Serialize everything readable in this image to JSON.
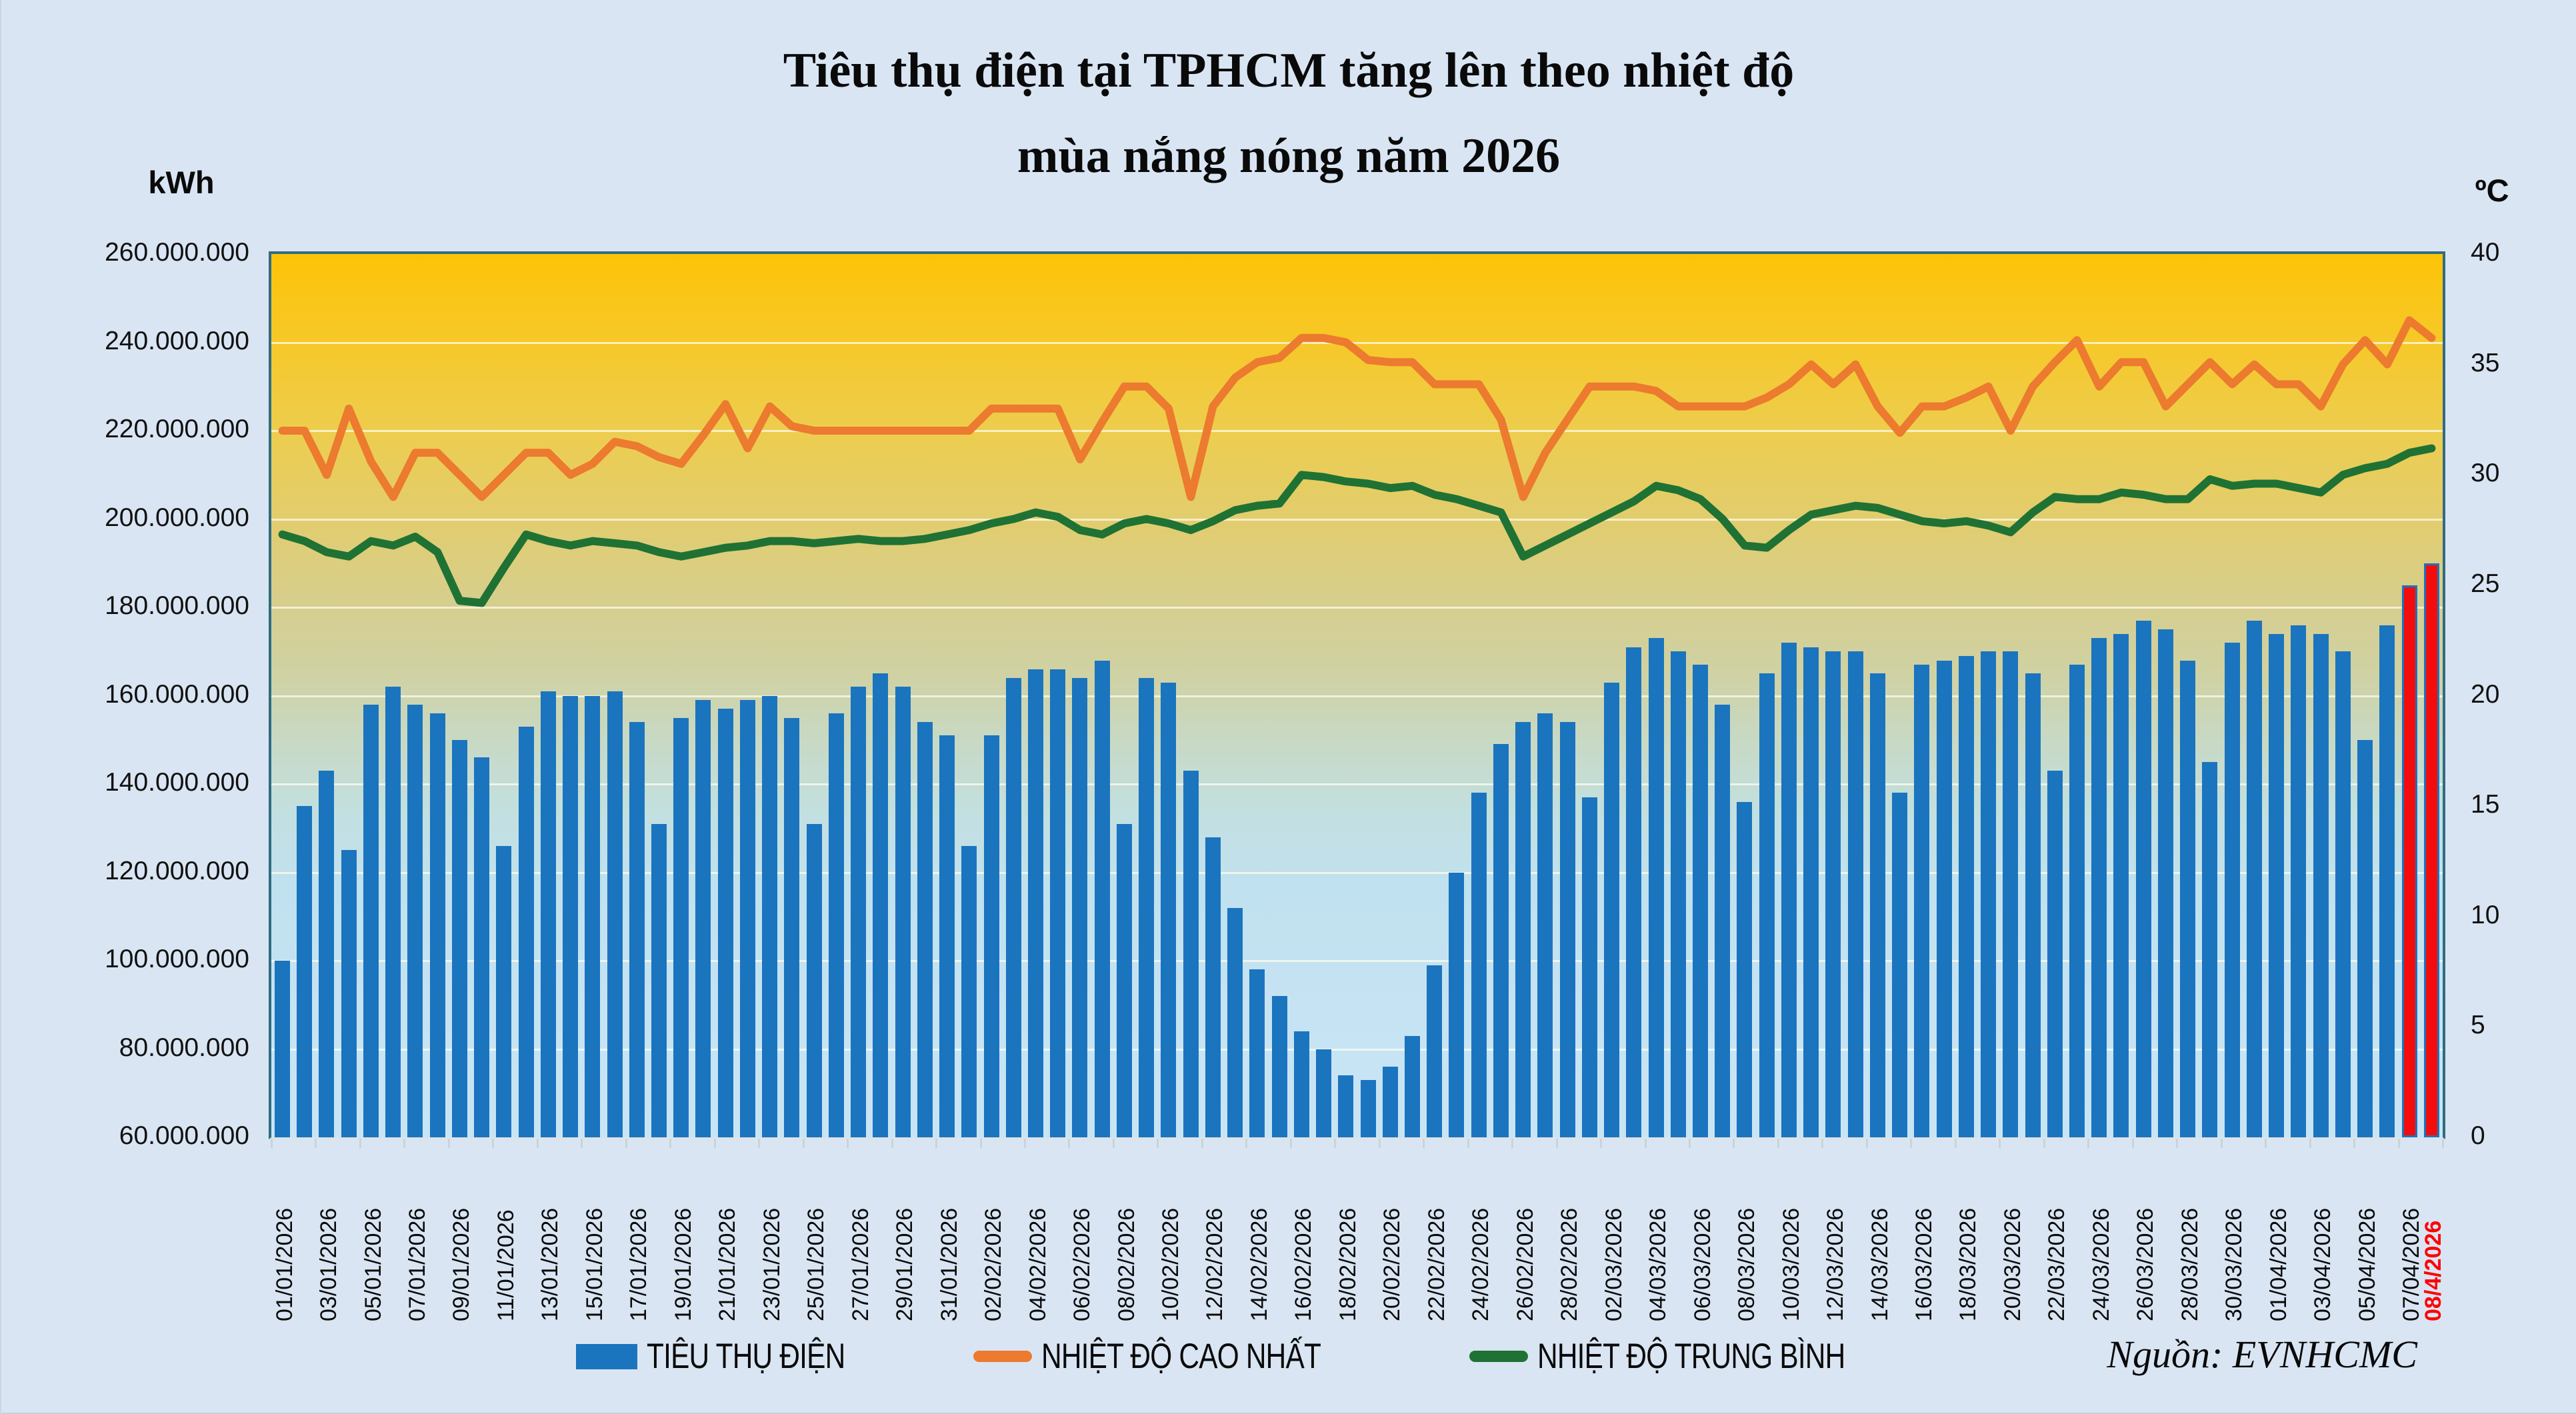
{
  "title": {
    "line1": "Tiêu thụ điện tại TPHCM tăng lên theo nhiệt độ",
    "line2": "mùa nắng nóng năm 2026"
  },
  "axes": {
    "left_unit": "kWh",
    "right_unit": "ºC",
    "left_ticks": [
      "260.000.000",
      "240.000.000",
      "220.000.000",
      "200.000.000",
      "180.000.000",
      "160.000.000",
      "140.000.000",
      "120.000.000",
      "100.000.000",
      "80.000.000",
      "60.000.000"
    ],
    "right_ticks": [
      "40",
      "35",
      "30",
      "25",
      "20",
      "15",
      "10",
      "5",
      "0"
    ]
  },
  "legend": [
    {
      "label": "TIÊU THỤ ĐIỆN",
      "color": "#1B74BE",
      "marker": "rect"
    },
    {
      "label": "NHIỆT ĐỘ CAO NHẤT",
      "color": "#EC7A2F",
      "marker": "line"
    },
    {
      "label": "NHIỆT ĐỘ TRUNG BÌNH",
      "color": "#1F7233",
      "marker": "line"
    }
  ],
  "source": "Nguồn: EVNHCMC",
  "chart_data": {
    "type": "combo",
    "x": {
      "dates": [
        "01/01/2026",
        "02/01/2026",
        "03/01/2026",
        "04/01/2026",
        "05/01/2026",
        "06/01/2026",
        "07/01/2026",
        "08/01/2026",
        "09/01/2026",
        "10/01/2026",
        "11/01/2026",
        "12/01/2026",
        "13/01/2026",
        "14/01/2026",
        "15/01/2026",
        "16/01/2026",
        "17/01/2026",
        "18/01/2026",
        "19/01/2026",
        "20/01/2026",
        "21/01/2026",
        "22/01/2026",
        "23/01/2026",
        "24/01/2026",
        "25/01/2026",
        "26/01/2026",
        "27/01/2026",
        "28/01/2026",
        "29/01/2026",
        "30/01/2026",
        "31/01/2026",
        "01/02/2026",
        "02/02/2026",
        "03/02/2026",
        "04/02/2026",
        "05/02/2026",
        "06/02/2026",
        "07/02/2026",
        "08/02/2026",
        "09/02/2026",
        "10/02/2026",
        "11/02/2026",
        "12/02/2026",
        "13/02/2026",
        "14/02/2026",
        "15/02/2026",
        "16/02/2026",
        "17/02/2026",
        "18/02/2026",
        "19/02/2026",
        "20/02/2026",
        "21/02/2026",
        "22/02/2026",
        "23/02/2026",
        "24/02/2026",
        "25/02/2026",
        "26/02/2026",
        "27/02/2026",
        "28/02/2026",
        "01/03/2026",
        "02/03/2026",
        "03/03/2026",
        "04/03/2026",
        "05/03/2026",
        "06/03/2026",
        "07/03/2026",
        "08/03/2026",
        "09/03/2026",
        "10/03/2026",
        "11/03/2026",
        "12/03/2026",
        "13/03/2026",
        "14/03/2026",
        "15/03/2026",
        "16/03/2026",
        "17/03/2026",
        "18/03/2026",
        "19/03/2026",
        "20/03/2026",
        "21/03/2026",
        "22/03/2026",
        "23/03/2026",
        "24/03/2026",
        "25/03/2026",
        "26/03/2026",
        "27/03/2026",
        "28/03/2026",
        "29/03/2026",
        "30/03/2026",
        "31/03/2026",
        "01/04/2026",
        "02/04/2026",
        "03/04/2026",
        "04/04/2026",
        "05/04/2026",
        "06/04/2026",
        "07/04/2026",
        "08/04/2026"
      ],
      "tick_every": 2,
      "highlight_label": "08/4/2026"
    },
    "ylim_left": [
      60000000,
      260000000
    ],
    "ylim_right": [
      0,
      40
    ],
    "grid": true,
    "series": [
      {
        "name": "TIÊU THỤ ĐIỆN",
        "type": "bar",
        "axis": "left",
        "color": "#1B74BE",
        "highlight_color": "#F40C0C",
        "highlight_dates": [
          "07/04/2026",
          "08/04/2026"
        ],
        "values": [
          100000000,
          135000000,
          143000000,
          125000000,
          158000000,
          162000000,
          158000000,
          156000000,
          150000000,
          146000000,
          126000000,
          153000000,
          161000000,
          160000000,
          160000000,
          161000000,
          154000000,
          131000000,
          155000000,
          159000000,
          157000000,
          159000000,
          160000000,
          155000000,
          131000000,
          156000000,
          162000000,
          165000000,
          162000000,
          154000000,
          151000000,
          126000000,
          151000000,
          164000000,
          166000000,
          166000000,
          164000000,
          168000000,
          131000000,
          164000000,
          163000000,
          143000000,
          128000000,
          112000000,
          98000000,
          92000000,
          84000000,
          80000000,
          74000000,
          73000000,
          76000000,
          83000000,
          99000000,
          120000000,
          138000000,
          149000000,
          154000000,
          156000000,
          154000000,
          137000000,
          163000000,
          171000000,
          173000000,
          170000000,
          167000000,
          158000000,
          136000000,
          165000000,
          172000000,
          171000000,
          170000000,
          170000000,
          165000000,
          138000000,
          167000000,
          168000000,
          169000000,
          170000000,
          170000000,
          165000000,
          143000000,
          167000000,
          173000000,
          174000000,
          177000000,
          175000000,
          168000000,
          145000000,
          172000000,
          177000000,
          174000000,
          176000000,
          174000000,
          170000000,
          150000000,
          176000000,
          185000000,
          190000000
        ]
      },
      {
        "name": "NHIỆT ĐỘ CAO NHẤT",
        "type": "line",
        "axis": "right",
        "color": "#EC7A2F",
        "values": [
          32,
          32,
          30,
          33,
          30.6,
          29,
          31,
          31,
          30,
          29,
          30,
          31,
          31,
          30,
          30.5,
          31.5,
          31.3,
          30.8,
          30.5,
          31.8,
          33.2,
          31.2,
          33.1,
          32.2,
          32,
          32,
          32,
          32,
          32,
          32,
          32,
          32,
          33,
          33,
          33,
          33,
          30.7,
          32.4,
          34,
          34,
          33,
          29,
          33.1,
          34.4,
          35.1,
          35.3,
          36.2,
          36.2,
          36,
          35.2,
          35.1,
          35.1,
          34.1,
          34.1,
          34.1,
          32.5,
          29,
          31,
          32.5,
          34,
          34,
          34,
          33.8,
          33.1,
          33.1,
          33.1,
          33.1,
          33.5,
          34.1,
          35,
          34.1,
          35,
          33.1,
          31.9,
          33.1,
          33.1,
          33.5,
          34,
          32,
          34,
          35.1,
          36.1,
          34,
          35.1,
          35.1,
          33.1,
          34.1,
          35.1,
          34.1,
          35,
          34.1,
          34.1,
          33.1,
          35,
          36.1,
          35,
          37,
          36.2
        ]
      },
      {
        "name": "NHIỆT ĐỘ TRUNG BÌNH",
        "type": "line",
        "axis": "right",
        "color": "#1F7233",
        "values": [
          27.3,
          27,
          26.5,
          26.3,
          27,
          26.8,
          27.2,
          26.5,
          24.3,
          24.2,
          25.8,
          27.3,
          27,
          26.8,
          27,
          26.9,
          26.8,
          26.5,
          26.3,
          26.5,
          26.7,
          26.8,
          27,
          27,
          26.9,
          27,
          27.1,
          27,
          27,
          27.1,
          27.3,
          27.5,
          27.8,
          28,
          28.3,
          28.1,
          27.5,
          27.3,
          27.8,
          28,
          27.8,
          27.5,
          27.9,
          28.4,
          28.6,
          28.7,
          30,
          29.9,
          29.7,
          29.6,
          29.4,
          29.5,
          29.1,
          28.9,
          28.6,
          28.3,
          26.3,
          26.8,
          27.3,
          27.8,
          28.3,
          28.8,
          29.5,
          29.3,
          28.9,
          28,
          26.8,
          26.7,
          27.5,
          28.2,
          28.4,
          28.6,
          28.5,
          28.2,
          27.9,
          27.8,
          27.9,
          27.7,
          27.4,
          28.3,
          29,
          28.9,
          28.9,
          29.2,
          29.1,
          28.9,
          28.9,
          29.8,
          29.5,
          29.6,
          29.6,
          29.4,
          29.2,
          30,
          30.3,
          30.5,
          31,
          31.2
        ]
      }
    ]
  }
}
